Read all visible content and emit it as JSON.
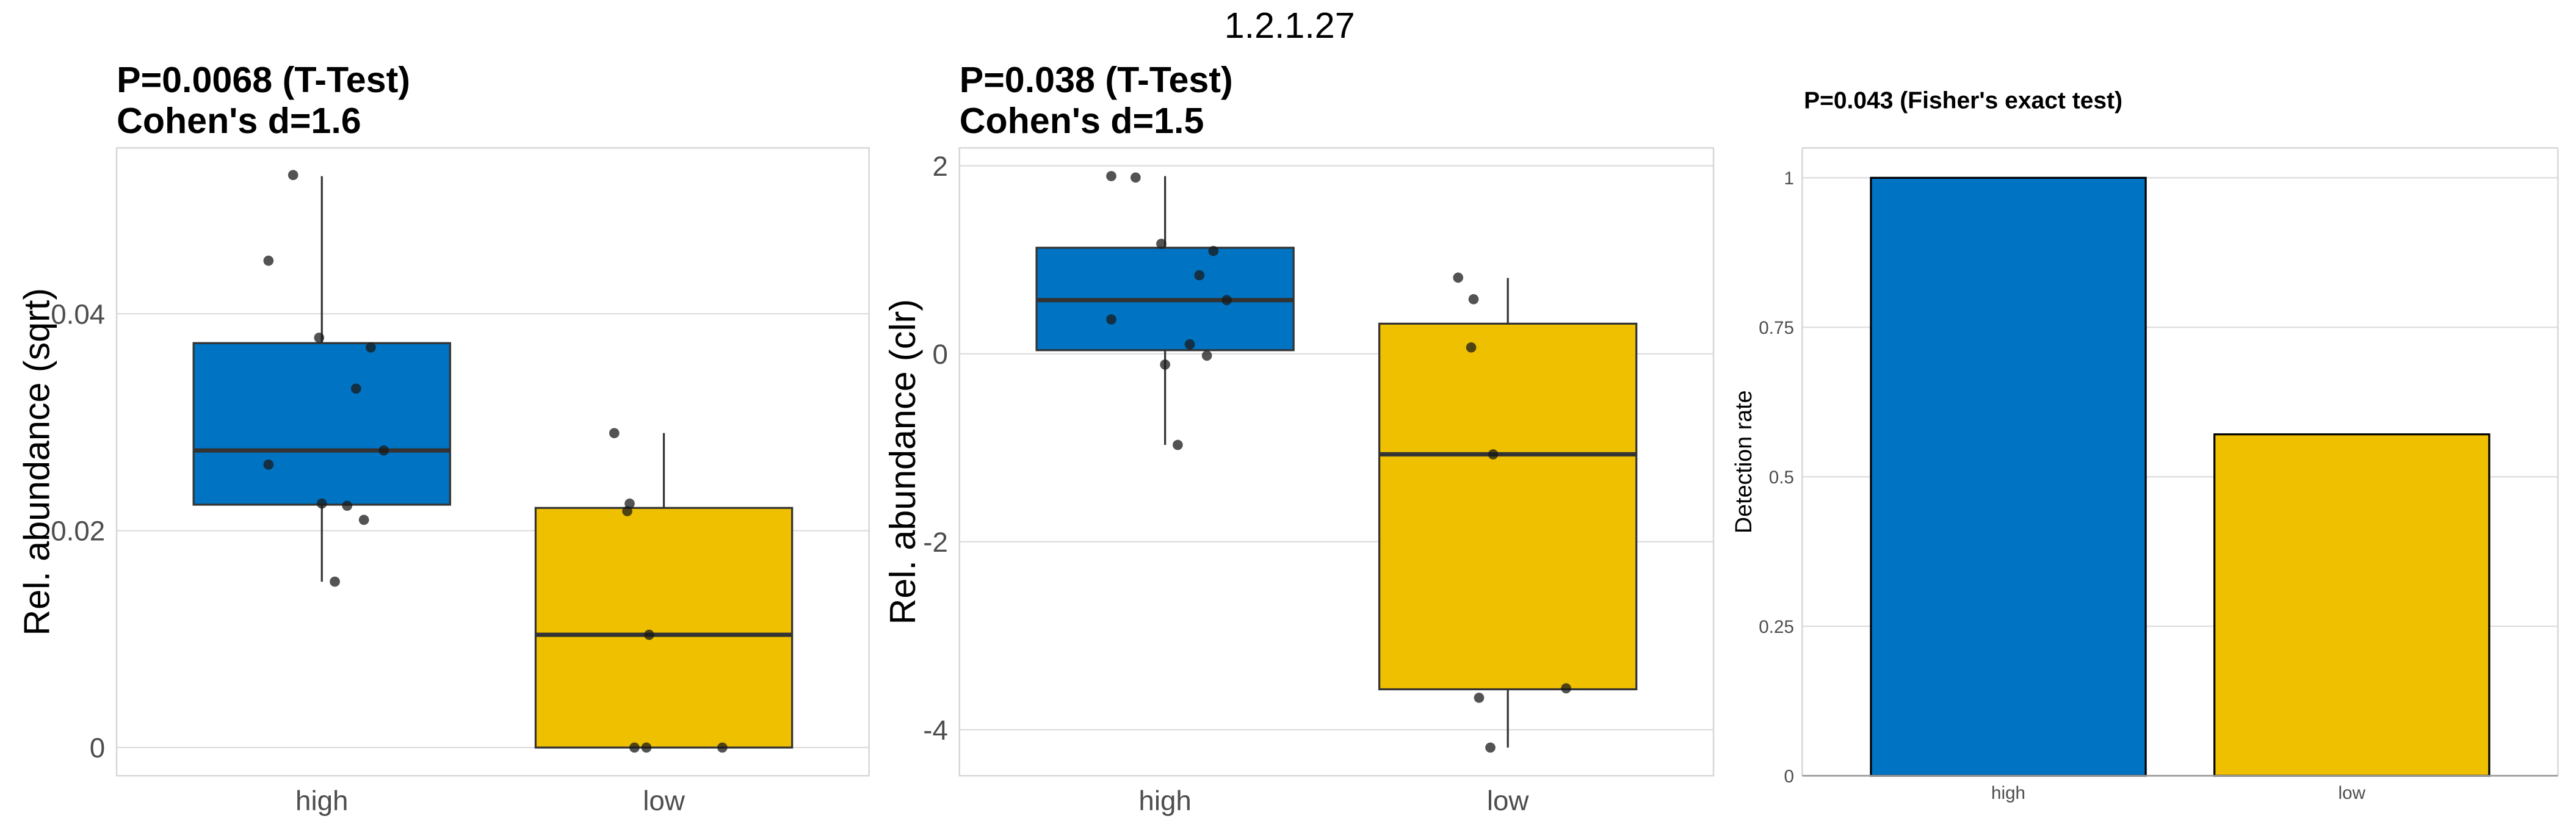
{
  "main_title": "1.2.1.27",
  "colors": {
    "high": "#0073C2",
    "low": "#EFC000",
    "grid": "#dcdcdc",
    "border": "#d6d6d6",
    "point": "#1a1a1a"
  },
  "chart_data": [
    {
      "type": "box",
      "title_line1": "P=0.0068 (T-Test)",
      "title_line2": "Cohen's d=1.6",
      "ylabel": "Rel. abundance (sqrt)",
      "categories": [
        "high",
        "low"
      ],
      "ylim": [
        -0.0026,
        0.0553
      ],
      "yticks": [
        0,
        0.02,
        0.04
      ],
      "ytick_labels": [
        "0",
        "0.02",
        "0.04"
      ],
      "boxes": [
        {
          "category": "high",
          "whisker_low": 0.0153,
          "q1": 0.0224,
          "median": 0.0274,
          "q3": 0.0373,
          "whisker_high": 0.0527
        },
        {
          "category": "low",
          "whisker_low": 0,
          "q1": 0,
          "median": 0.0104,
          "q3": 0.0221,
          "whisker_high": 0.029
        }
      ],
      "points": [
        {
          "category": "high",
          "jitter": [
            -0.084,
            -0.156,
            -0.008,
            0.143,
            0.1,
            0.181,
            -0.156,
            0,
            0.074,
            0.123,
            0.038
          ],
          "values": [
            0.0528,
            0.0449,
            0.0378,
            0.0369,
            0.0331,
            0.0274,
            0.0261,
            0.0225,
            0.0223,
            0.021,
            0.0153
          ]
        },
        {
          "category": "low",
          "jitter": [
            -0.145,
            -0.1,
            -0.107,
            -0.043,
            -0.086,
            -0.051,
            0.171
          ],
          "values": [
            0.029,
            0.0225,
            0.0218,
            0.0104,
            0,
            0,
            0
          ]
        }
      ]
    },
    {
      "type": "box",
      "title_line1": "P=0.038 (T-Test)",
      "title_line2": "Cohen's d=1.5",
      "ylabel": "Rel. abundance (clr)",
      "categories": [
        "high",
        "low"
      ],
      "ylim": [
        -4.49,
        2.19
      ],
      "yticks": [
        -4,
        -2,
        0,
        2
      ],
      "ytick_labels": [
        "-4",
        "-2",
        "0",
        "2"
      ],
      "boxes": [
        {
          "category": "high",
          "whisker_low": -0.97,
          "q1": 0.038,
          "median": 0.571,
          "q3": 1.128,
          "whisker_high": 1.89
        },
        {
          "category": "low",
          "whisker_low": -4.19,
          "q1": -3.57,
          "median": -1.07,
          "q3": 0.32,
          "whisker_high": 0.806
        }
      ],
      "points": [
        {
          "category": "high",
          "jitter": [
            -0.157,
            -0.086,
            -0.011,
            0.141,
            0.1,
            0.18,
            -0.157,
            0.072,
            0.122,
            0,
            0.037
          ],
          "values": [
            1.89,
            1.875,
            1.17,
            1.094,
            0.835,
            0.571,
            0.365,
            0.1,
            -0.02,
            -0.115,
            -0.97
          ]
        },
        {
          "category": "low",
          "jitter": [
            -0.145,
            -0.1,
            -0.107,
            -0.043,
            0.17,
            -0.084,
            -0.051
          ],
          "values": [
            0.81,
            0.58,
            0.067,
            -1.07,
            -3.56,
            -3.66,
            -4.19
          ]
        }
      ]
    },
    {
      "type": "bar",
      "title": "P=0.043 (Fisher's exact test)",
      "ylabel": "Detection rate",
      "categories": [
        "high",
        "low"
      ],
      "values": [
        1.0,
        0.571
      ],
      "ylim": [
        0,
        1.05
      ],
      "yticks": [
        0,
        0.25,
        0.5,
        0.75,
        1
      ],
      "ytick_labels": [
        "0",
        "0.25",
        "0.5",
        "0.75",
        "1"
      ]
    }
  ]
}
